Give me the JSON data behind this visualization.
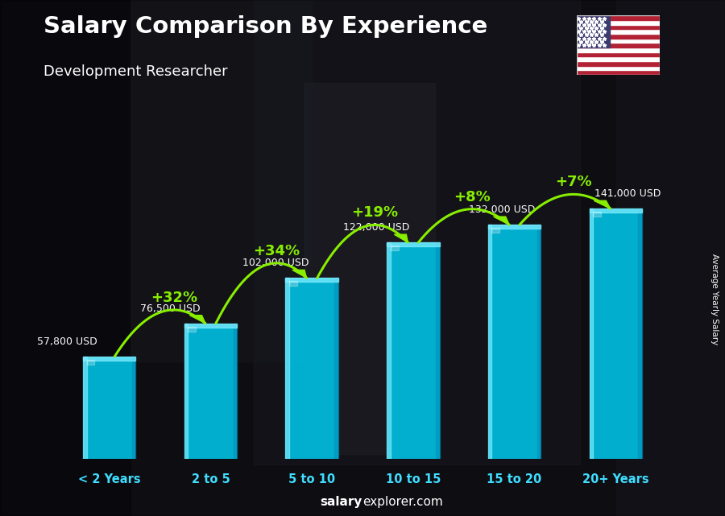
{
  "title": "Salary Comparison By Experience",
  "subtitle": "Development Researcher",
  "ylabel": "Average Yearly Salary",
  "footer_bold": "salary",
  "footer_normal": "explorer.com",
  "categories": [
    "< 2 Years",
    "2 to 5",
    "5 to 10",
    "10 to 15",
    "15 to 20",
    "20+ Years"
  ],
  "values": [
    57800,
    76500,
    102000,
    122000,
    132000,
    141000
  ],
  "value_labels": [
    "57,800 USD",
    "76,500 USD",
    "102,000 USD",
    "122,000 USD",
    "132,000 USD",
    "141,000 USD"
  ],
  "pct_changes": [
    "+32%",
    "+34%",
    "+19%",
    "+8%",
    "+7%"
  ],
  "bar_main_color": "#00C5E8",
  "bar_light_color": "#7EEEFF",
  "bar_dark_color": "#0090BB",
  "bar_side_color": "#00AACF",
  "bg_color": "#1a1a2a",
  "title_color": "#ffffff",
  "subtitle_color": "#ffffff",
  "value_label_color": "#ffffff",
  "pct_color": "#88EE00",
  "arrow_color": "#88EE00",
  "footer_color": "#ffffff",
  "ylim_max": 180000,
  "bar_width": 0.52,
  "cat_label_color": "#40DDFF"
}
